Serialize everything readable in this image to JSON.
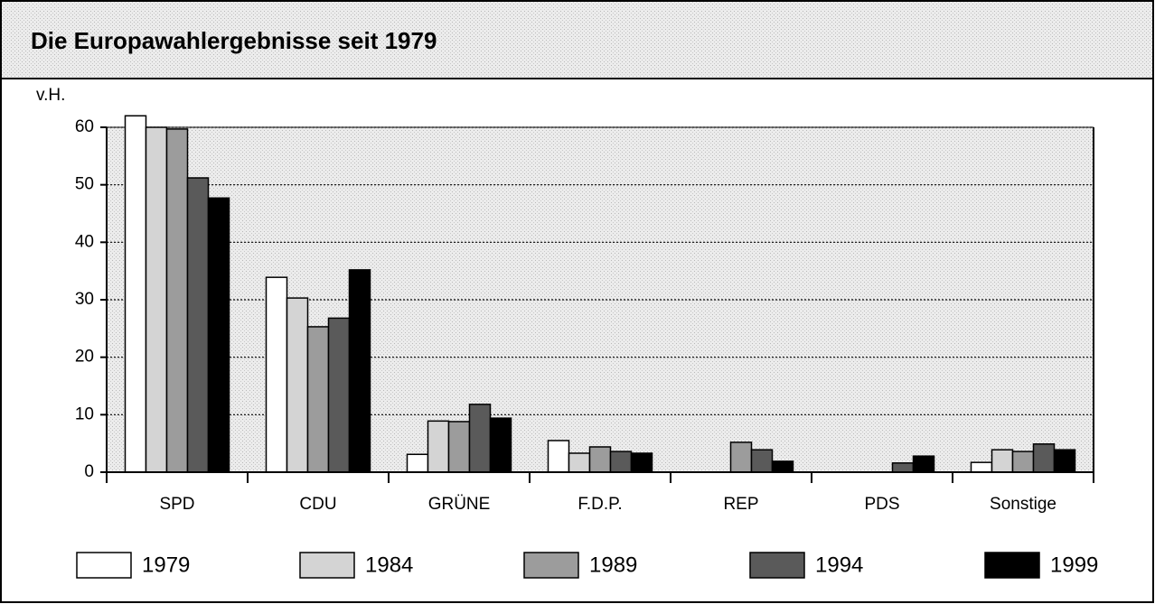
{
  "chart_data": {
    "type": "bar",
    "title": "Die Europawahlergebnisse seit 1979",
    "y_label": "v.H.",
    "categories": [
      "SPD",
      "CDU",
      "GRÜNE",
      "F.D.P.",
      "REP",
      "PDS",
      "Sonstige"
    ],
    "series": [
      {
        "name": "1979",
        "color": "#ffffff",
        "values": [
          62.0,
          33.9,
          3.1,
          5.5,
          null,
          null,
          1.7
        ]
      },
      {
        "name": "1984",
        "color": "#d4d4d4",
        "values": [
          60.0,
          30.3,
          8.9,
          3.3,
          null,
          null,
          3.9
        ]
      },
      {
        "name": "1989",
        "color": "#9c9c9c",
        "values": [
          59.7,
          25.3,
          8.8,
          4.4,
          5.2,
          null,
          3.6
        ]
      },
      {
        "name": "1994",
        "color": "#5a5a5a",
        "values": [
          51.2,
          26.8,
          11.8,
          3.6,
          3.9,
          1.6,
          4.9
        ]
      },
      {
        "name": "1999",
        "color": "#000000",
        "values": [
          47.7,
          35.2,
          9.4,
          3.3,
          1.9,
          2.8,
          3.9
        ]
      }
    ],
    "ylim": [
      0,
      60
    ],
    "yticks": [
      0,
      10,
      20,
      30,
      40,
      50,
      60
    ],
    "grid": true
  }
}
